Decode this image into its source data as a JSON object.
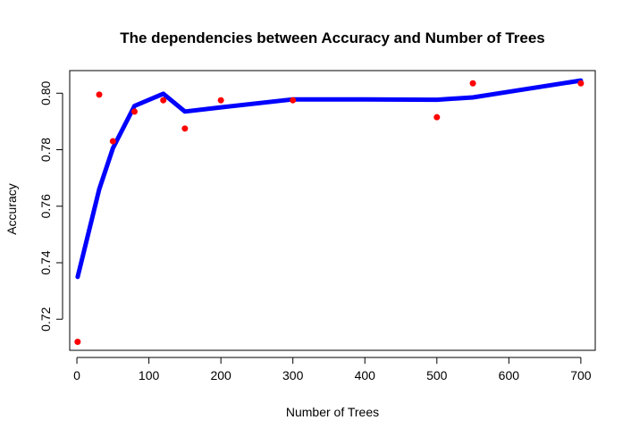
{
  "chart_data": {
    "type": "scatter",
    "title": "The dependencies between Accuracy and Number of Trees",
    "xlabel": "Number of Trees",
    "ylabel": "Accuracy",
    "xlim": [
      -10,
      720
    ],
    "ylim": [
      0.709,
      0.808
    ],
    "x_ticks": [
      0,
      100,
      200,
      300,
      400,
      500,
      600,
      700
    ],
    "y_ticks": [
      0.72,
      0.74,
      0.76,
      0.78,
      0.8
    ],
    "grid": false,
    "series": [
      {
        "kind": "points",
        "color": "#ff0000",
        "x": [
          1,
          31,
          50,
          80,
          120,
          150,
          200,
          300,
          500,
          550,
          700
        ],
        "y": [
          0.712,
          0.7995,
          0.783,
          0.7935,
          0.7975,
          0.7875,
          0.7975,
          0.7975,
          0.7915,
          0.8035,
          0.8035
        ]
      },
      {
        "kind": "line",
        "color": "#0000ff",
        "x": [
          1,
          31,
          50,
          80,
          120,
          150,
          200,
          300,
          400,
          500,
          550,
          600,
          700
        ],
        "y": [
          0.735,
          0.766,
          0.7805,
          0.7955,
          0.7998,
          0.7935,
          0.795,
          0.7978,
          0.7978,
          0.7977,
          0.7985,
          0.8005,
          0.8045
        ]
      }
    ]
  }
}
